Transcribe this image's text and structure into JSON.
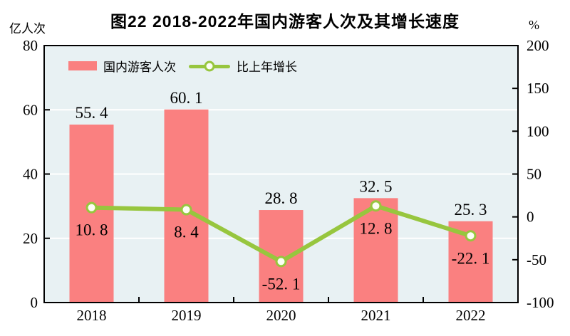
{
  "chart_data": {
    "type": "combo",
    "title": "图22  2018-2022年国内游客人次及其增长速度",
    "categories": [
      "2018",
      "2019",
      "2020",
      "2021",
      "2022"
    ],
    "series": [
      {
        "name": "国内游客人次",
        "type": "bar",
        "axis": "left",
        "unit": "亿人次",
        "values": [
          55.4,
          60.1,
          28.8,
          32.5,
          25.3
        ],
        "color": "#fa8080"
      },
      {
        "name": "比上年增长",
        "type": "line",
        "axis": "right",
        "unit": "%",
        "values": [
          10.8,
          8.4,
          -52.1,
          12.8,
          -22.1
        ],
        "color": "#97c63e",
        "marker_fill": "#fcfef4"
      }
    ],
    "left_axis": {
      "unit": "亿人次",
      "min": 0,
      "max": 80,
      "step": 20,
      "ticks": [
        0,
        20,
        40,
        60,
        80
      ]
    },
    "right_axis": {
      "unit": "%",
      "min": -100,
      "max": 200,
      "step": 50,
      "ticks": [
        -100,
        -50,
        0,
        50,
        100,
        150,
        200
      ]
    },
    "grid": true,
    "legend_position": "top-left-inside",
    "colors": {
      "plot_bg": "#e8f1f3",
      "frame": "#000000",
      "gridline": "#ffffff",
      "text": "#000000",
      "background": "#ffffff"
    }
  }
}
